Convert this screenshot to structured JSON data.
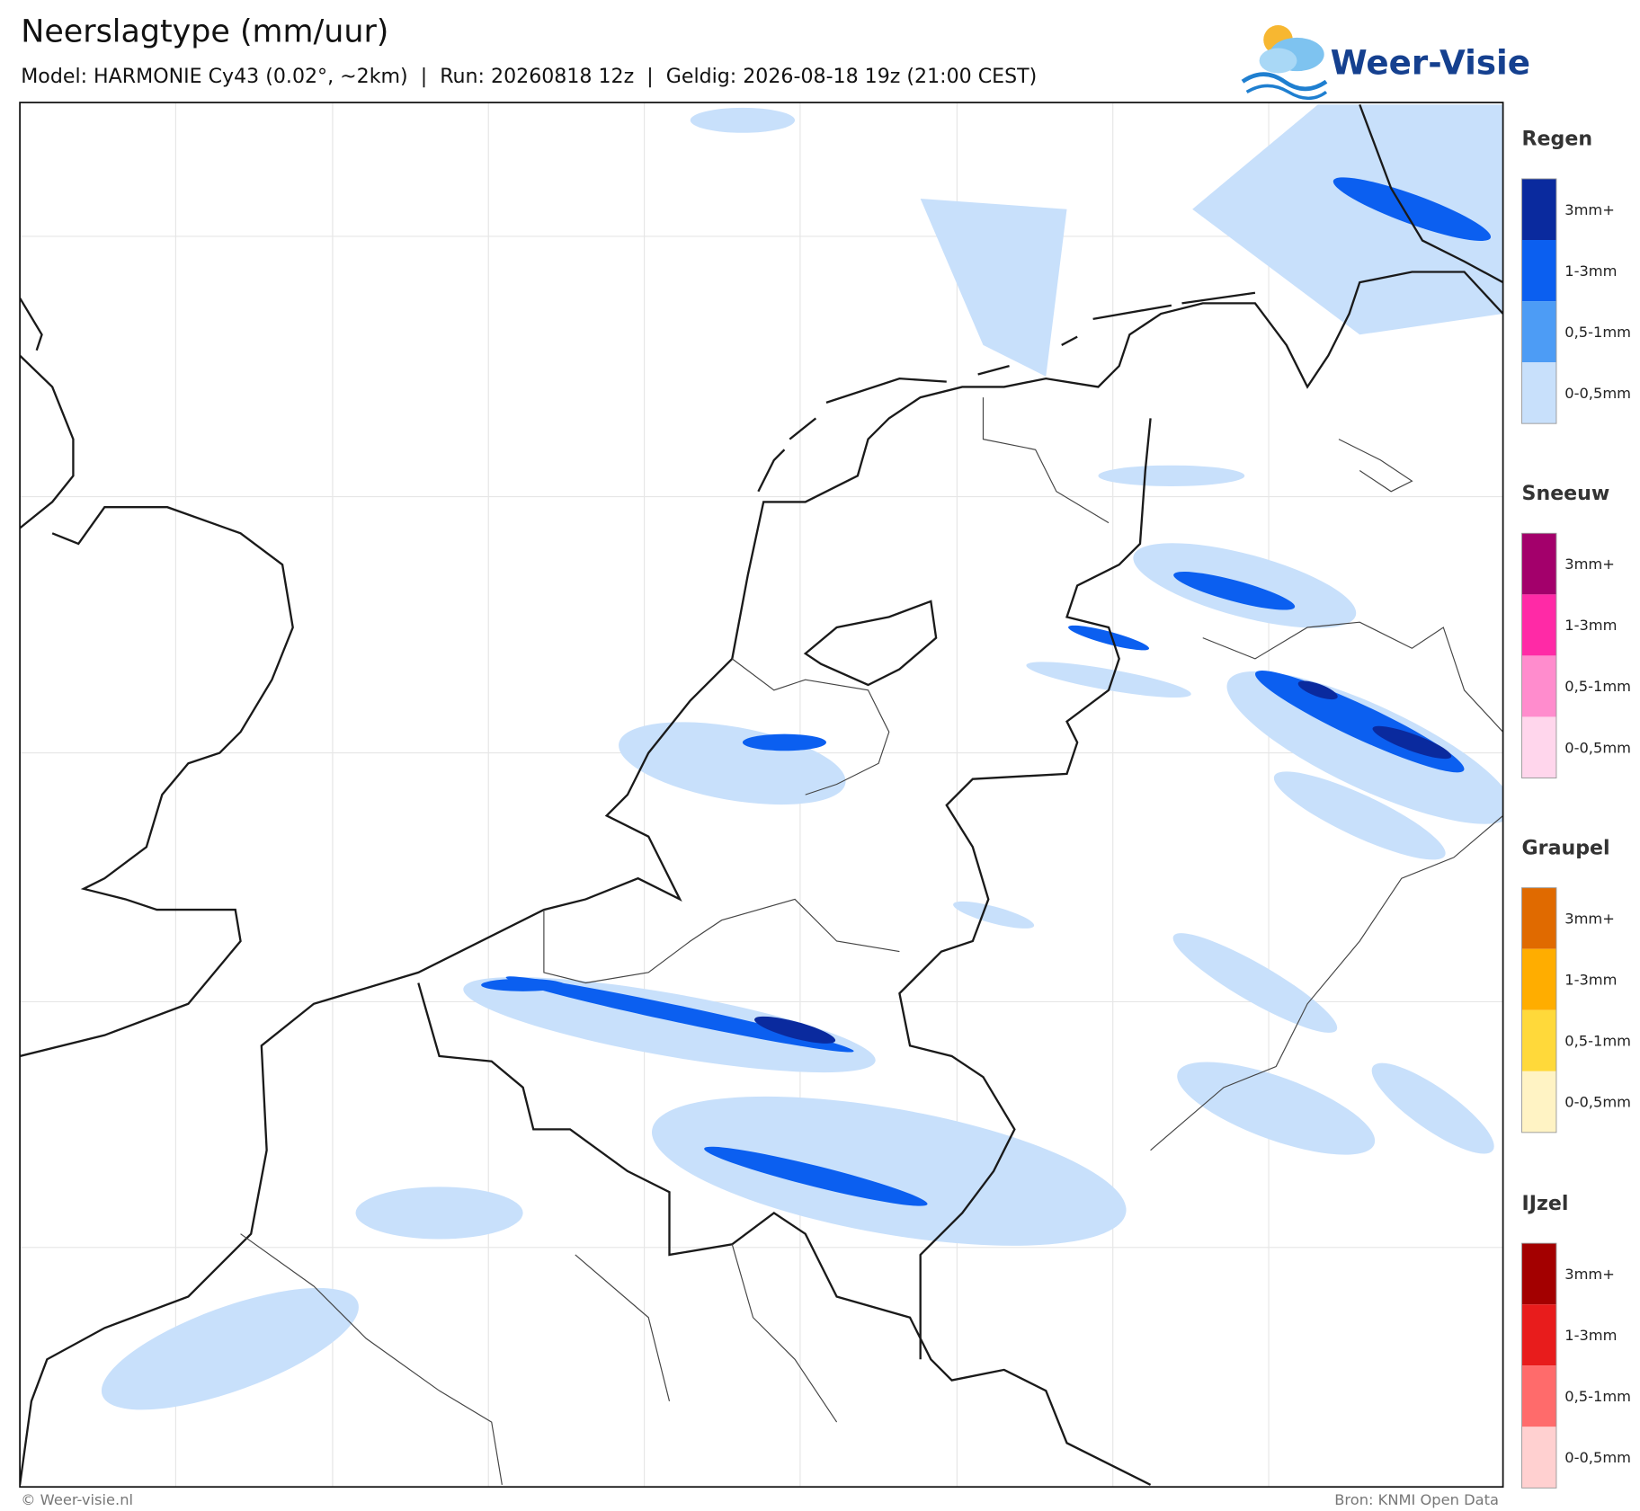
{
  "header": {
    "title": "Neerslagtype (mm/uur)",
    "subtitle": "Model: HARMONIE Cy43 (0.02°, ~2km)  |  Run: 20260818 12z  |  Geldig: 2026-08-18 19z (21:00 CEST)",
    "logo": "Weer-Visie"
  },
  "legend": [
    {
      "title": "Regen",
      "items": [
        {
          "label": "3mm+",
          "color": "#0a2a9e"
        },
        {
          "label": "1-3mm",
          "color": "#0b5ff0"
        },
        {
          "label": "0,5-1mm",
          "color": "#4d9cf5"
        },
        {
          "label": "0-0,5mm",
          "color": "#c8e0fb"
        }
      ]
    },
    {
      "title": "Sneeuw",
      "items": [
        {
          "label": "3mm+",
          "color": "#a3006b"
        },
        {
          "label": "1-3mm",
          "color": "#ff2aa6"
        },
        {
          "label": "0,5-1mm",
          "color": "#ff8ccd"
        },
        {
          "label": "0-0,5mm",
          "color": "#ffd6ec"
        }
      ]
    },
    {
      "title": "Graupel",
      "items": [
        {
          "label": "3mm+",
          "color": "#e06a00"
        },
        {
          "label": "1-3mm",
          "color": "#ffad00"
        },
        {
          "label": "0,5-1mm",
          "color": "#ffd93a"
        },
        {
          "label": "0-0,5mm",
          "color": "#fff3c4"
        }
      ]
    },
    {
      "title": "IJzel",
      "items": [
        {
          "label": "3mm+",
          "color": "#a30000"
        },
        {
          "label": "1-3mm",
          "color": "#e81c1c"
        },
        {
          "label": "0,5-1mm",
          "color": "#ff6b6b"
        },
        {
          "label": "0-0,5mm",
          "color": "#ffd0d0"
        }
      ]
    }
  ],
  "footer": {
    "credit": "© Weer-visie.nl",
    "source": "Bron: KNMI Open Data"
  }
}
